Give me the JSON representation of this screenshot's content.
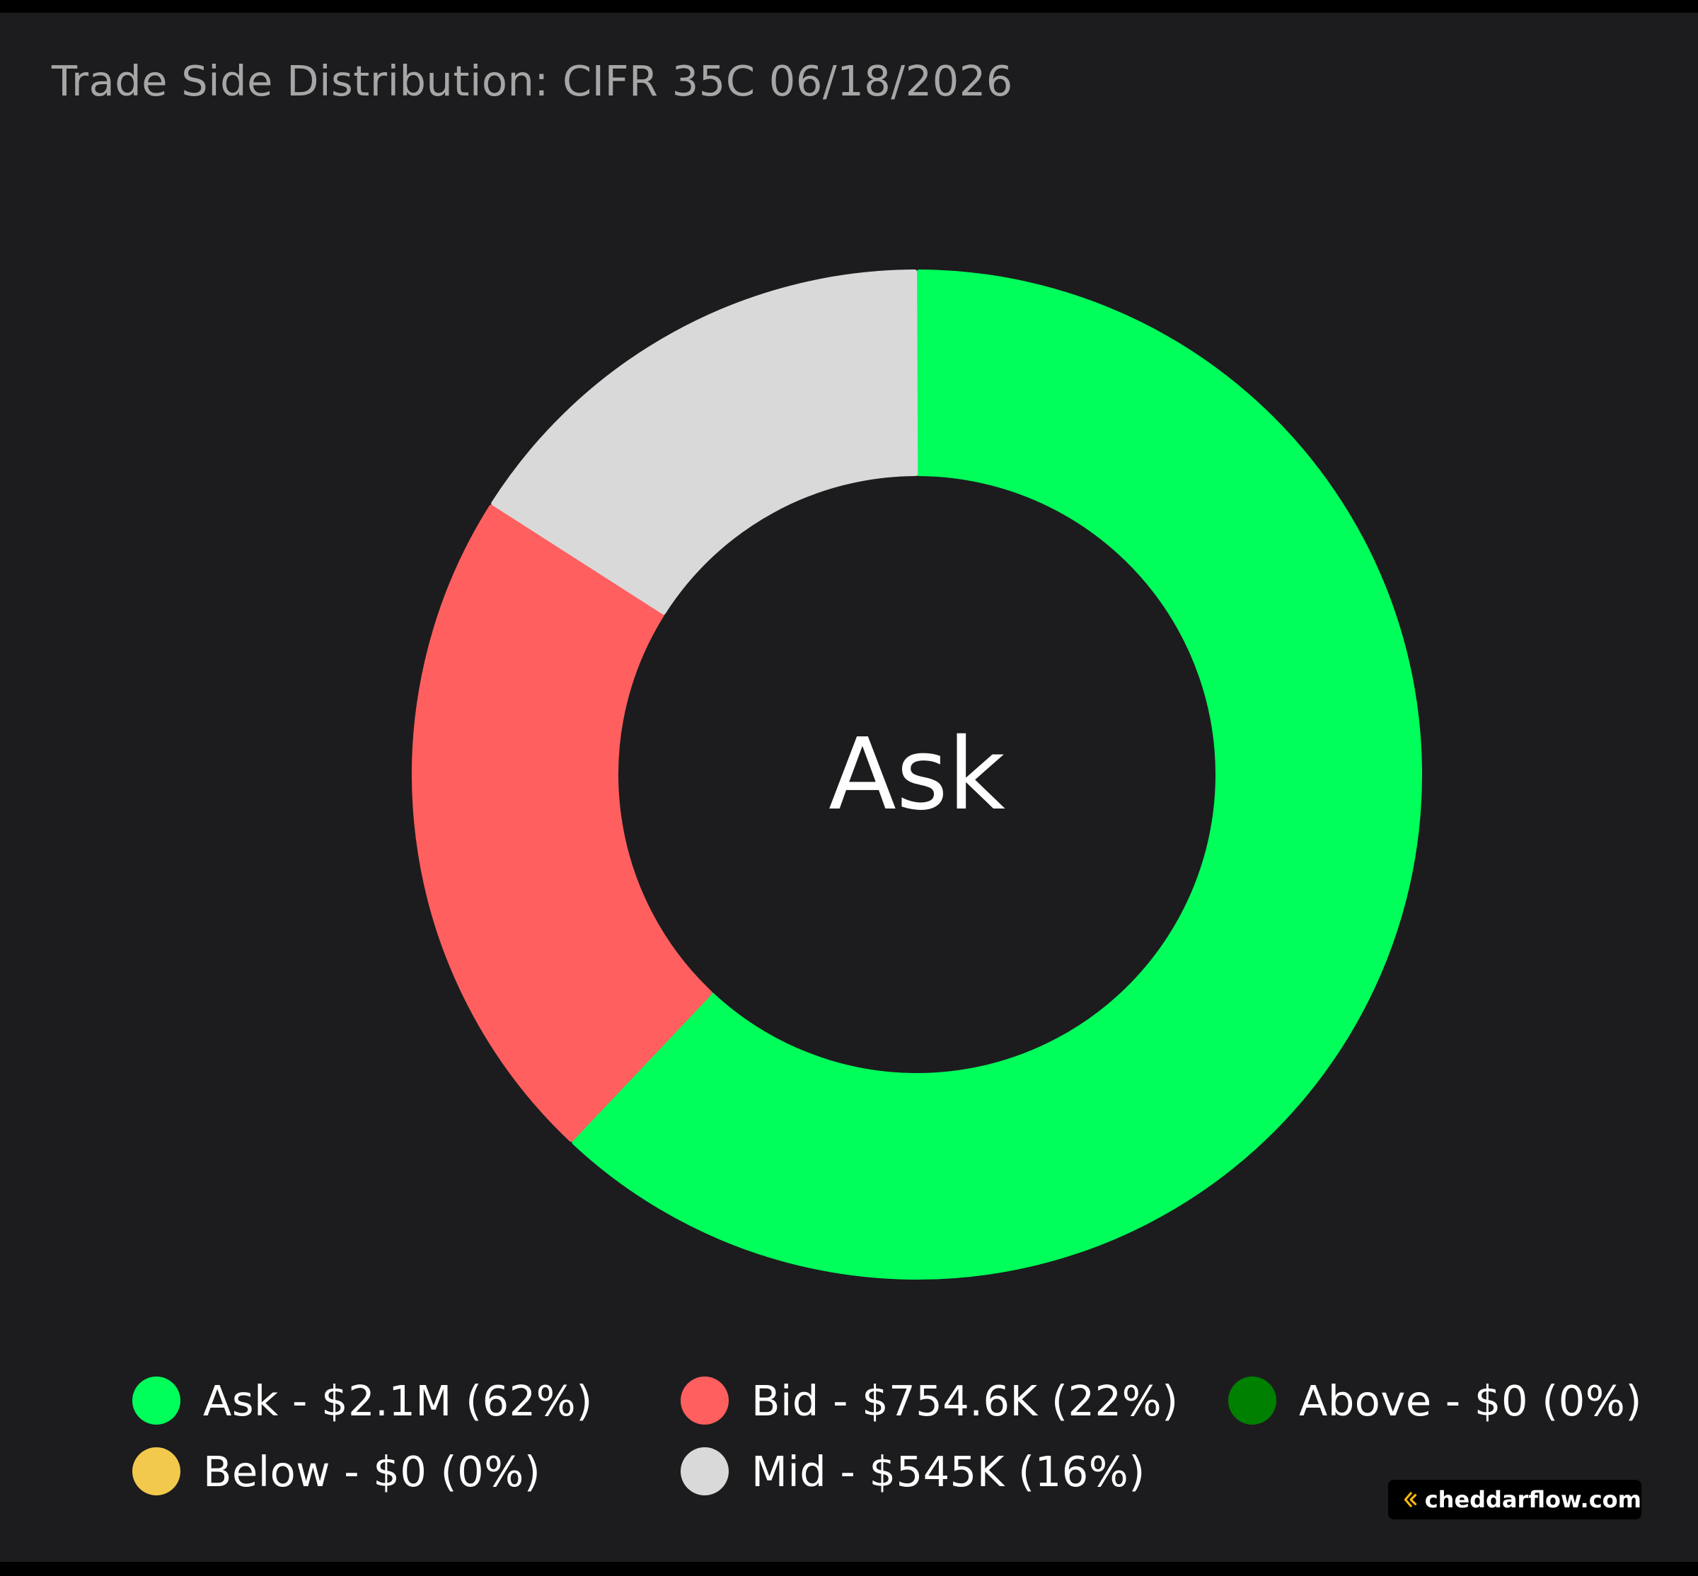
{
  "chart_data": {
    "type": "pie",
    "title": "Trade Side Distribution: CIFR 35C 06/18/2026",
    "center_label": "Ask",
    "slices": [
      {
        "name": "Ask",
        "value": 62,
        "color": "#00ff5a"
      },
      {
        "name": "Bid",
        "value": 22,
        "color": "#ff5f5f"
      },
      {
        "name": "Mid",
        "value": 16,
        "color": "#d9d9d9"
      }
    ],
    "legend": [
      {
        "name": "Ask",
        "text": "Ask - $2.1M (62%)",
        "color": "#00ff5a"
      },
      {
        "name": "Bid",
        "text": "Bid - $754.6K (22%)",
        "color": "#ff5f5f"
      },
      {
        "name": "Above",
        "text": "Above - $0 (0%)",
        "color": "#008000"
      },
      {
        "name": "Below",
        "text": "Below - $0 (0%)",
        "color": "#f2c94c"
      },
      {
        "name": "Mid",
        "text": "Mid - $545K (16%)",
        "color": "#d9d9d9"
      }
    ],
    "legend_position": "bottom"
  },
  "branding": {
    "text": "cheddarflow.com",
    "icon": "cheddarflow-logo-icon",
    "accent": "#f5b70a"
  }
}
